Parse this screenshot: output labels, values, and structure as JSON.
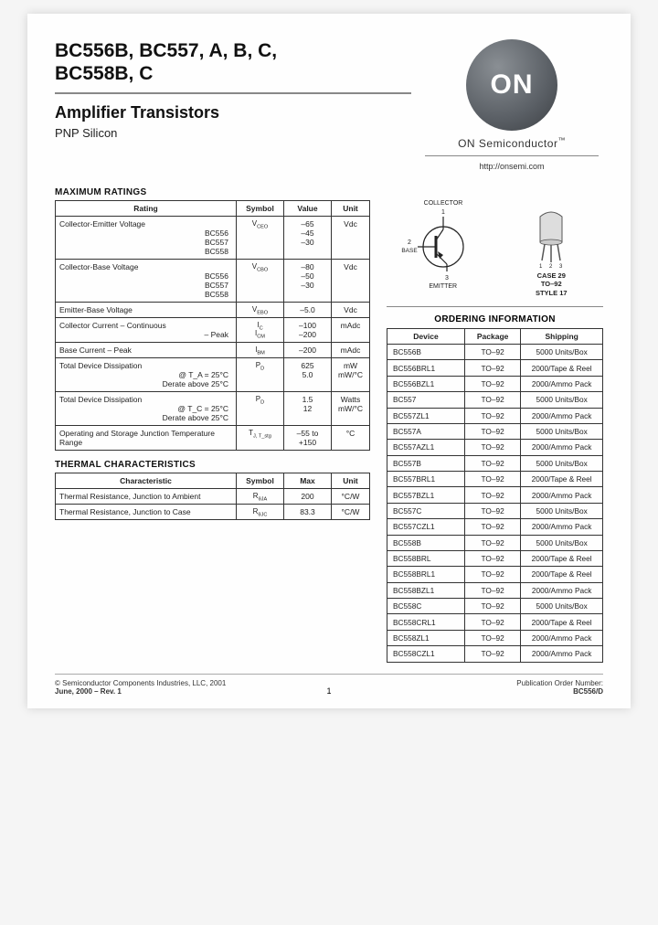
{
  "header": {
    "parts_line1": "BC556B, BC557, A, B, C,",
    "parts_line2": "BC558B, C",
    "subtitle": "Amplifier Transistors",
    "subsub": "PNP Silicon"
  },
  "brand": {
    "logo_text": "ON",
    "name": "ON Semiconductor",
    "tm": "™",
    "url": "http://onsemi.com"
  },
  "ratings": {
    "title": "MAXIMUM RATINGS",
    "headers": [
      "Rating",
      "Symbol",
      "Value",
      "Unit"
    ],
    "rows": [
      {
        "label": "Collector-Emitter Voltage",
        "sub": [
          "BC556",
          "BC557",
          "BC558"
        ],
        "sym": "V_CEO",
        "vals": [
          "–65",
          "–45",
          "–30"
        ],
        "unit": "Vdc"
      },
      {
        "label": "Collector-Base Voltage",
        "sub": [
          "BC556",
          "BC557",
          "BC558"
        ],
        "sym": "V_CBO",
        "vals": [
          "–80",
          "–50",
          "–30"
        ],
        "unit": "Vdc"
      },
      {
        "label": "Emitter-Base Voltage",
        "sub": [],
        "sym": "V_EBO",
        "vals": [
          "–5.0"
        ],
        "unit": "Vdc"
      },
      {
        "label": "Collector Current – Continuous",
        "sub": [
          "– Peak"
        ],
        "sym": "I_C\nI_CM",
        "vals": [
          "–100",
          "–200"
        ],
        "unit": "mAdc"
      },
      {
        "label": "Base Current – Peak",
        "sub": [],
        "sym": "I_BM",
        "vals": [
          "–200"
        ],
        "unit": "mAdc"
      },
      {
        "label": "Total Device Dissipation",
        "sub": [
          "@ T_A = 25°C",
          "Derate above 25°C"
        ],
        "sym": "P_D",
        "vals": [
          "625",
          "5.0"
        ],
        "unit": "mW\nmW/°C"
      },
      {
        "label": "Total Device Dissipation",
        "sub": [
          "@ T_C = 25°C",
          "Derate above 25°C"
        ],
        "sym": "P_D",
        "vals": [
          "1.5",
          "12"
        ],
        "unit": "Watts\nmW/°C"
      },
      {
        "label": "Operating and Storage Junction Temperature Range",
        "sub": [],
        "sym": "T_J, T_stg",
        "vals": [
          "–55 to +150"
        ],
        "unit": "°C"
      }
    ]
  },
  "thermal": {
    "title": "THERMAL CHARACTERISTICS",
    "headers": [
      "Characteristic",
      "Symbol",
      "Max",
      "Unit"
    ],
    "rows": [
      {
        "label": "Thermal Resistance, Junction to Ambient",
        "sym": "R_θJA",
        "val": "200",
        "unit": "°C/W"
      },
      {
        "label": "Thermal Resistance, Junction to Case",
        "sym": "R_θJC",
        "val": "83.3",
        "unit": "°C/W"
      }
    ]
  },
  "pinout": {
    "collector": "COLLECTOR",
    "c_num": "1",
    "base": "BASE",
    "b_num": "2",
    "emitter": "EMITTER",
    "e_num": "3"
  },
  "package": {
    "line1": "CASE 29",
    "line2": "TO–92",
    "line3": "STYLE 17",
    "pins": "1 2 3"
  },
  "ordering": {
    "title": "ORDERING INFORMATION",
    "headers": [
      "Device",
      "Package",
      "Shipping"
    ],
    "rows": [
      [
        "BC556B",
        "TO–92",
        "5000 Units/Box"
      ],
      [
        "BC556BRL1",
        "TO–92",
        "2000/Tape & Reel"
      ],
      [
        "BC556BZL1",
        "TO–92",
        "2000/Ammo Pack"
      ],
      [
        "BC557",
        "TO–92",
        "5000 Units/Box"
      ],
      [
        "BC557ZL1",
        "TO–92",
        "2000/Ammo Pack"
      ],
      [
        "BC557A",
        "TO–92",
        "5000 Units/Box"
      ],
      [
        "BC557AZL1",
        "TO–92",
        "2000/Ammo Pack"
      ],
      [
        "BC557B",
        "TO–92",
        "5000 Units/Box"
      ],
      [
        "BC557BRL1",
        "TO–92",
        "2000/Tape & Reel"
      ],
      [
        "BC557BZL1",
        "TO–92",
        "2000/Ammo Pack"
      ],
      [
        "BC557C",
        "TO–92",
        "5000 Units/Box"
      ],
      [
        "BC557CZL1",
        "TO–92",
        "2000/Ammo Pack"
      ],
      [
        "BC558B",
        "TO–92",
        "5000 Units/Box"
      ],
      [
        "BC558BRL",
        "TO–92",
        "2000/Tape & Reel"
      ],
      [
        "BC558BRL1",
        "TO–92",
        "2000/Tape & Reel"
      ],
      [
        "BC558BZL1",
        "TO–92",
        "2000/Ammo Pack"
      ],
      [
        "BC558C",
        "TO–92",
        "5000 Units/Box"
      ],
      [
        "BC558CRL1",
        "TO–92",
        "2000/Tape & Reel"
      ],
      [
        "BC558ZL1",
        "TO–92",
        "2000/Ammo Pack"
      ],
      [
        "BC558CZL1",
        "TO–92",
        "2000/Ammo Pack"
      ]
    ]
  },
  "footer": {
    "copyright": "© Semiconductor Components Industries, LLC, 2001",
    "date": "June, 2000 – Rev. 1",
    "page": "1",
    "pub_label": "Publication Order Number:",
    "pub_num": "BC556/D"
  },
  "colors": {
    "text": "#111111",
    "border": "#333333",
    "hr": "#888888",
    "bg": "#fefefe"
  }
}
